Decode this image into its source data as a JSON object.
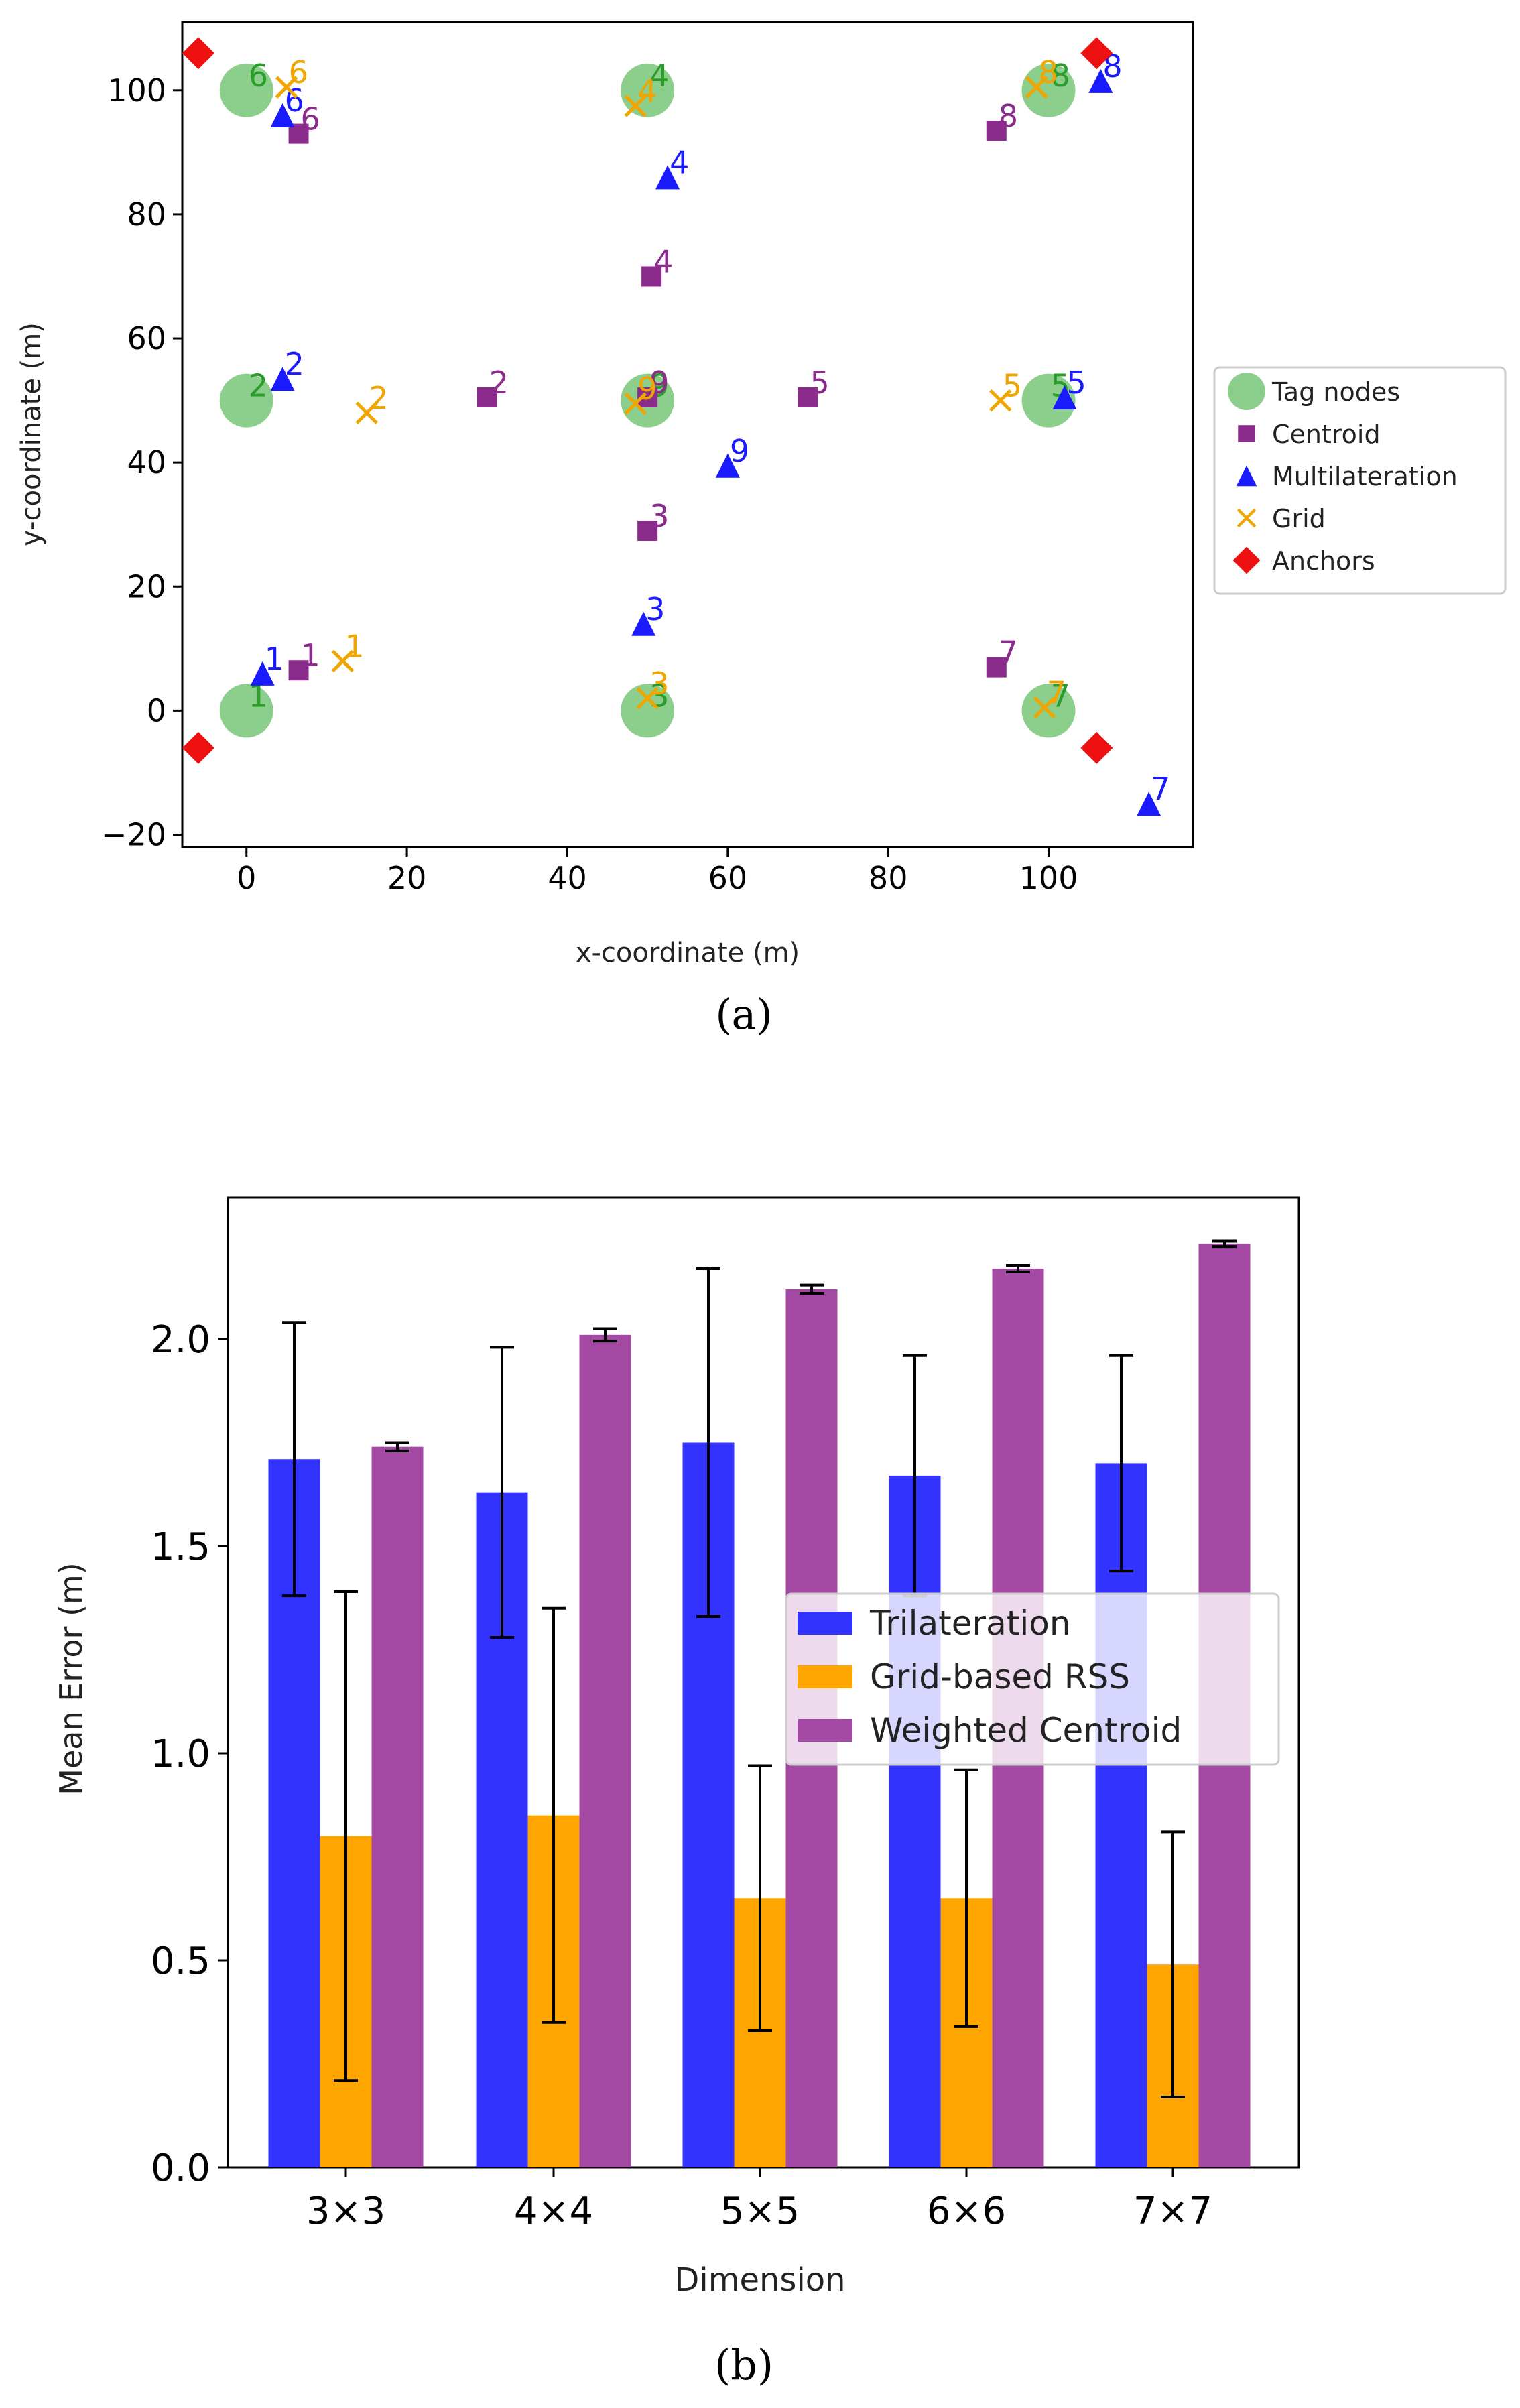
{
  "chart_data": [
    {
      "type": "scatter",
      "caption": "(a)",
      "xlabel": "x-coordinate (m)",
      "ylabel": "y-coordinate (m)",
      "xlim": [
        -8,
        118
      ],
      "ylim": [
        -22,
        111
      ],
      "xticks": [
        0,
        20,
        40,
        60,
        80,
        100
      ],
      "yticks": [
        -20,
        0,
        20,
        40,
        60,
        80,
        100
      ],
      "legend_position": "right",
      "series": [
        {
          "name": "Tag nodes",
          "marker": "circle",
          "color": "#7fc97f",
          "points": [
            {
              "label": "1",
              "x": 0,
              "y": 0
            },
            {
              "label": "2",
              "x": 0,
              "y": 50
            },
            {
              "label": "3",
              "x": 50,
              "y": 0
            },
            {
              "label": "4",
              "x": 50,
              "y": 100
            },
            {
              "label": "5",
              "x": 100,
              "y": 50
            },
            {
              "label": "6",
              "x": 0,
              "y": 100
            },
            {
              "label": "7",
              "x": 100,
              "y": 0
            },
            {
              "label": "8",
              "x": 100,
              "y": 100
            },
            {
              "label": "9",
              "x": 50,
              "y": 50
            }
          ]
        },
        {
          "name": "Centroid",
          "marker": "square",
          "color": "#8b2b8b",
          "points": [
            {
              "label": "1",
              "x": 6.5,
              "y": 6.5
            },
            {
              "label": "2",
              "x": 30,
              "y": 50.5
            },
            {
              "label": "3",
              "x": 50,
              "y": 29
            },
            {
              "label": "4",
              "x": 50.5,
              "y": 70
            },
            {
              "label": "5",
              "x": 70,
              "y": 50.5
            },
            {
              "label": "6",
              "x": 6.5,
              "y": 93
            },
            {
              "label": "7",
              "x": 93.5,
              "y": 7
            },
            {
              "label": "8",
              "x": 93.5,
              "y": 93.5
            },
            {
              "label": "9",
              "x": 50,
              "y": 50.5
            }
          ]
        },
        {
          "name": "Multilateration",
          "marker": "triangle",
          "color": "#1a1aff",
          "points": [
            {
              "label": "1",
              "x": 2,
              "y": 6
            },
            {
              "label": "2",
              "x": 4.5,
              "y": 53.5
            },
            {
              "label": "3",
              "x": 49.5,
              "y": 14
            },
            {
              "label": "4",
              "x": 52.5,
              "y": 86
            },
            {
              "label": "5",
              "x": 102,
              "y": 50.5
            },
            {
              "label": "6",
              "x": 4.5,
              "y": 96
            },
            {
              "label": "7",
              "x": 112.5,
              "y": -15
            },
            {
              "label": "8",
              "x": 106.5,
              "y": 101.5
            },
            {
              "label": "9",
              "x": 60,
              "y": 39.5
            }
          ]
        },
        {
          "name": "Grid",
          "marker": "x",
          "color": "#f0a500",
          "points": [
            {
              "label": "1",
              "x": 12,
              "y": 8
            },
            {
              "label": "2",
              "x": 15,
              "y": 48
            },
            {
              "label": "3",
              "x": 50,
              "y": 2
            },
            {
              "label": "4",
              "x": 48.5,
              "y": 97.5
            },
            {
              "label": "5",
              "x": 94,
              "y": 50
            },
            {
              "label": "6",
              "x": 5,
              "y": 100.5
            },
            {
              "label": "7",
              "x": 99.5,
              "y": 0.5
            },
            {
              "label": "8",
              "x": 98.5,
              "y": 100.5
            },
            {
              "label": "9",
              "x": 48.5,
              "y": 49.5
            }
          ]
        },
        {
          "name": "Anchors",
          "marker": "diamond",
          "color": "#ee1111",
          "points": [
            {
              "x": -6,
              "y": 106
            },
            {
              "x": 106,
              "y": 106
            },
            {
              "x": -6,
              "y": -6
            },
            {
              "x": 106,
              "y": -6
            }
          ]
        }
      ]
    },
    {
      "type": "bar",
      "caption": "(b)",
      "xlabel": "Dimension",
      "ylabel": "Mean Error (m)",
      "categories": [
        "3×3",
        "4×4",
        "5×5",
        "6×6",
        "7×7"
      ],
      "ylim": [
        0,
        2.3
      ],
      "yticks": [
        "0.0",
        "0.5",
        "1.0",
        "1.5",
        "2.0"
      ],
      "legend_position": "center-right",
      "series": [
        {
          "name": "Trilateration",
          "color": "#3333ff",
          "values": [
            1.71,
            1.63,
            1.75,
            1.67,
            1.7
          ],
          "errors": [
            0.33,
            0.35,
            0.42,
            0.29,
            0.26
          ]
        },
        {
          "name": "Grid-based RSS",
          "color": "#ffa500",
          "values": [
            0.8,
            0.85,
            0.65,
            0.65,
            0.49
          ],
          "errors": [
            0.59,
            0.5,
            0.32,
            0.31,
            0.32
          ]
        },
        {
          "name": "Weighted Centroid",
          "color": "#a349a4",
          "values": [
            1.74,
            2.01,
            2.12,
            2.17,
            2.23
          ],
          "errors": [
            0.01,
            0.015,
            0.01,
            0.008,
            0.007
          ]
        }
      ]
    }
  ]
}
